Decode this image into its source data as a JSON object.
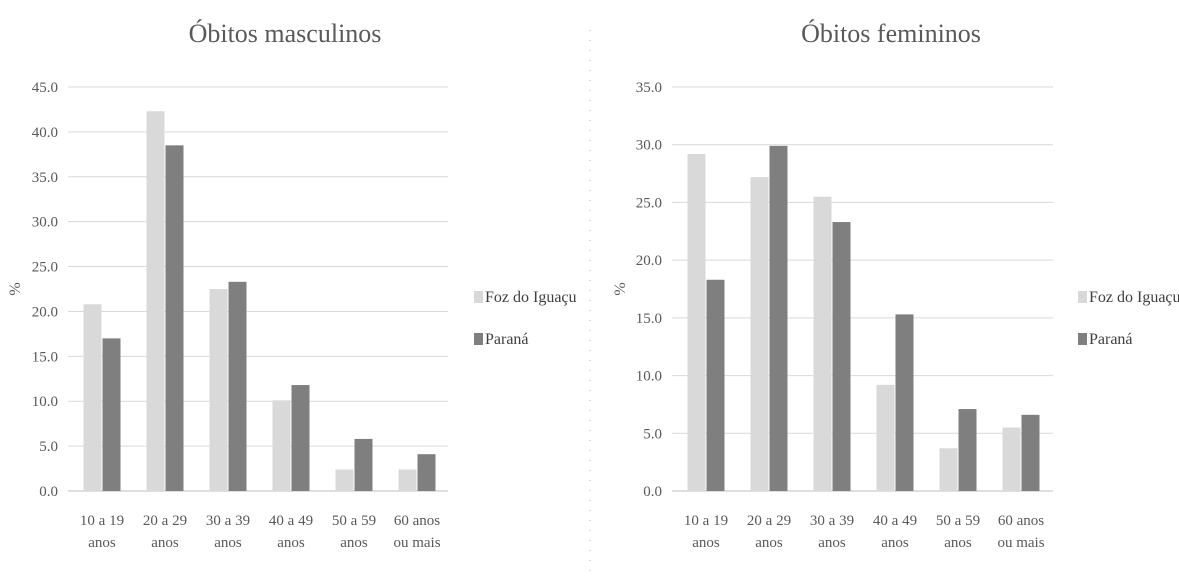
{
  "chart_data": [
    {
      "type": "bar",
      "title": "Óbitos masculinos",
      "xlabel": "",
      "ylabel": "%",
      "ylim": [
        0,
        45
      ],
      "ytick_step": 5,
      "ytick_labels": [
        "0.0",
        "5.0",
        "10.0",
        "15.0",
        "20.0",
        "25.0",
        "30.0",
        "35.0",
        "40.0",
        "45.0"
      ],
      "categories": [
        [
          "10 a 19",
          "anos"
        ],
        [
          "20 a 29",
          "anos"
        ],
        [
          "30 a 39",
          "anos"
        ],
        [
          "40 a 49",
          "anos"
        ],
        [
          "50 a 59",
          "anos"
        ],
        [
          "60 anos",
          "ou mais"
        ]
      ],
      "series": [
        {
          "name": "Foz do Iguaçu",
          "color": "#d9d9d9",
          "values": [
            20.8,
            42.3,
            22.5,
            10.1,
            2.4,
            2.4
          ]
        },
        {
          "name": "Paraná",
          "color": "#7f7f7f",
          "values": [
            17.0,
            38.5,
            23.3,
            11.8,
            5.8,
            4.1
          ]
        }
      ],
      "grid": true,
      "legend": "right"
    },
    {
      "type": "bar",
      "title": "Óbitos femininos",
      "xlabel": "",
      "ylabel": "%",
      "ylim": [
        0,
        35
      ],
      "ytick_step": 5,
      "ytick_labels": [
        "0.0",
        "5.0",
        "10.0",
        "15.0",
        "20.0",
        "25.0",
        "30.0",
        "35.0"
      ],
      "categories": [
        [
          "10 a 19",
          "anos"
        ],
        [
          "20 a 29",
          "anos"
        ],
        [
          "30 a 39",
          "anos"
        ],
        [
          "40 a 49",
          "anos"
        ],
        [
          "50 a 59",
          "anos"
        ],
        [
          "60 anos",
          "ou mais"
        ]
      ],
      "series": [
        {
          "name": "Foz do Iguaçu",
          "color": "#d9d9d9",
          "values": [
            29.2,
            27.2,
            25.5,
            9.2,
            3.7,
            5.5
          ]
        },
        {
          "name": "Paraná",
          "color": "#7f7f7f",
          "values": [
            18.3,
            29.9,
            23.3,
            15.3,
            7.1,
            6.6
          ]
        }
      ],
      "grid": true,
      "legend": "right"
    }
  ]
}
